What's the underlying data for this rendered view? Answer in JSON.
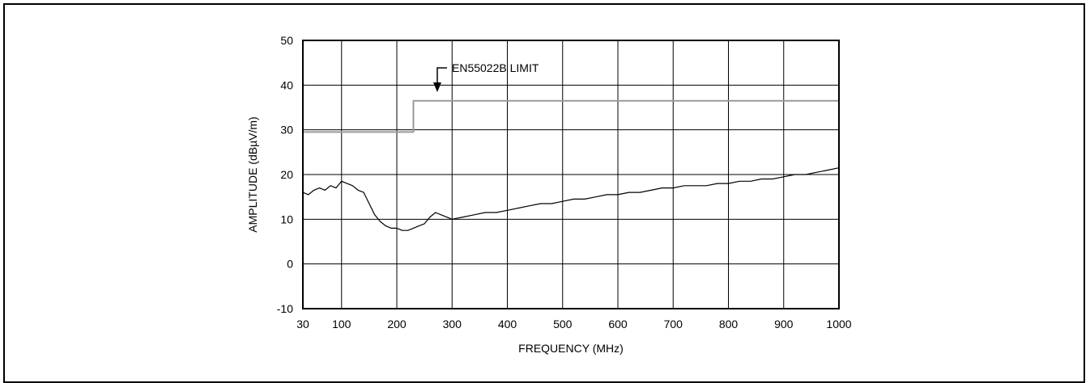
{
  "chart_data": {
    "type": "line",
    "xlabel": "FREQUENCY (MHz)",
    "ylabel": "AMPLITUDE (dBµV/m)",
    "xlim": [
      30,
      1000
    ],
    "ylim": [
      -10,
      50
    ],
    "x_ticks": [
      30,
      100,
      200,
      300,
      400,
      500,
      600,
      700,
      800,
      900,
      1000
    ],
    "y_ticks": [
      -10,
      0,
      10,
      20,
      30,
      40,
      50
    ],
    "grid": true,
    "annotation": {
      "text": "EN55022B LIMIT",
      "points_to_x": 270,
      "points_to_y": 37
    },
    "series": [
      {
        "name": "EN55022B LIMIT",
        "color": "#9a9a9a",
        "x": [
          30,
          230,
          230,
          1000
        ],
        "y": [
          29.5,
          29.5,
          36.5,
          36.5
        ]
      },
      {
        "color": "#000000",
        "x": [
          30,
          40,
          50,
          60,
          70,
          80,
          90,
          100,
          110,
          120,
          130,
          140,
          150,
          160,
          170,
          180,
          190,
          200,
          210,
          220,
          230,
          240,
          250,
          260,
          270,
          280,
          290,
          300,
          320,
          340,
          360,
          380,
          400,
          420,
          440,
          460,
          480,
          500,
          520,
          540,
          560,
          580,
          600,
          620,
          640,
          660,
          680,
          700,
          720,
          740,
          760,
          780,
          800,
          820,
          840,
          860,
          880,
          900,
          920,
          940,
          960,
          980,
          1000
        ],
        "y": [
          16,
          15.5,
          16.5,
          17,
          16.5,
          17.5,
          17,
          18.5,
          18,
          17.5,
          16.5,
          16,
          13.5,
          11,
          9.5,
          8.5,
          8,
          8,
          7.5,
          7.5,
          8,
          8.5,
          9,
          10.5,
          11.5,
          11,
          10.5,
          10,
          10.5,
          11,
          11.5,
          11.5,
          12,
          12.5,
          13,
          13.5,
          13.5,
          14,
          14.5,
          14.5,
          15,
          15.5,
          15.5,
          16,
          16,
          16.5,
          17,
          17,
          17.5,
          17.5,
          17.5,
          18,
          18,
          18.5,
          18.5,
          19,
          19,
          19.5,
          20,
          20,
          20.5,
          21,
          21.5
        ]
      }
    ]
  }
}
